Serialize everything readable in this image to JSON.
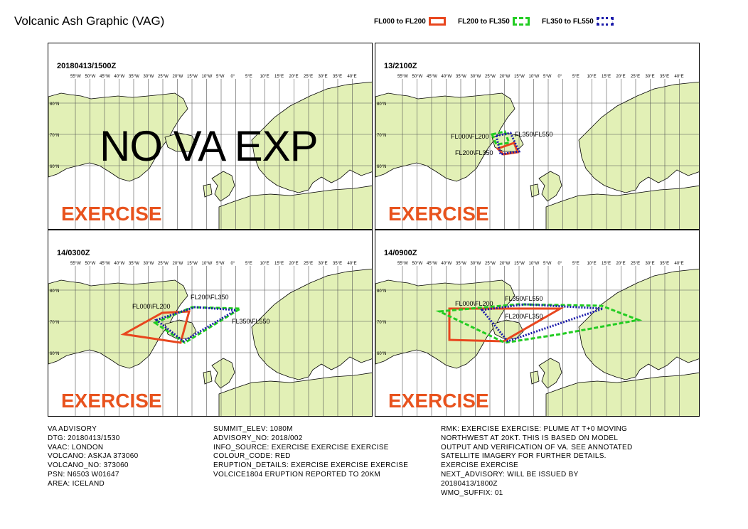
{
  "title": "Volcanic Ash Graphic (VAG)",
  "legend": [
    {
      "label": "FL000 to FL200",
      "color": "#e8461e",
      "style": "solid"
    },
    {
      "label": "FL200 to FL350",
      "color": "#22cc22",
      "style": "dashed"
    },
    {
      "label": "FL350 to FL550",
      "color": "#1a1aaa",
      "style": "dotted"
    }
  ],
  "map_labels": {
    "lon_ticks": [
      "55°W",
      "50°W",
      "45°W",
      "40°W",
      "35°W",
      "30°W",
      "25°W",
      "20°W",
      "15°W",
      "10°W",
      "5°W",
      "0°",
      "5°E",
      "10°E",
      "15°E",
      "20°E",
      "25°E",
      "30°E",
      "35°E",
      "40°E"
    ],
    "lat_ticks": [
      "80°N",
      "70°N",
      "60°N"
    ]
  },
  "panels": [
    {
      "time": "20180413/1500Z",
      "overlay": "NO VA EXP",
      "watermark": "EXERCISE",
      "labels": []
    },
    {
      "time": "13/2100Z",
      "overlay": "",
      "watermark": "EXERCISE",
      "labels": [
        "FL000\\FL200",
        "FL350\\FL550",
        "FL200\\FL350"
      ]
    },
    {
      "time": "14/0300Z",
      "overlay": "",
      "watermark": "EXERCISE",
      "labels": [
        "FL200\\FL350",
        "FL000\\FL200",
        "FL350\\FL550"
      ]
    },
    {
      "time": "14/0900Z",
      "overlay": "",
      "watermark": "EXERCISE",
      "labels": [
        "FL350\\FL550",
        "FL000\\FL200",
        "FL200\\FL350"
      ]
    }
  ],
  "advisory": {
    "col1": [
      "VA ADVISORY",
      "DTG: 20180413/1530",
      "VAAC: LONDON",
      "VOLCANO: ASKJA 373060",
      "VOLCANO_NO: 373060",
      "PSN: N6503 W01647",
      "AREA: ICELAND"
    ],
    "col2": [
      "SUMMIT_ELEV: 1080M",
      "ADVISORY_NO: 2018/002",
      "INFO_SOURCE: EXERCISE EXERCISE EXERCISE",
      "COLOUR_CODE: RED",
      "ERUPTION_DETAILS: EXERCISE EXERCISE EXERCISE",
      "VOLCICE1804 ERUPTION REPORTED TO 20KM"
    ],
    "col3": [
      "RMK: EXERCISE EXERCISE: PLUME AT T+0 MOVING",
      "NORTHWEST AT 20KT. THIS IS BASED ON MODEL",
      "OUTPUT AND VERIFICATION OF VA. SEE ANNOTATED",
      "SATELLITE IMAGERY FOR FURTHER DETAILS.",
      "EXERCISE EXERCISE",
      "NEXT_ADVISORY: WILL BE ISSUED BY",
      "20180413/1800Z",
      "WMO_SUFFIX: 01"
    ]
  }
}
